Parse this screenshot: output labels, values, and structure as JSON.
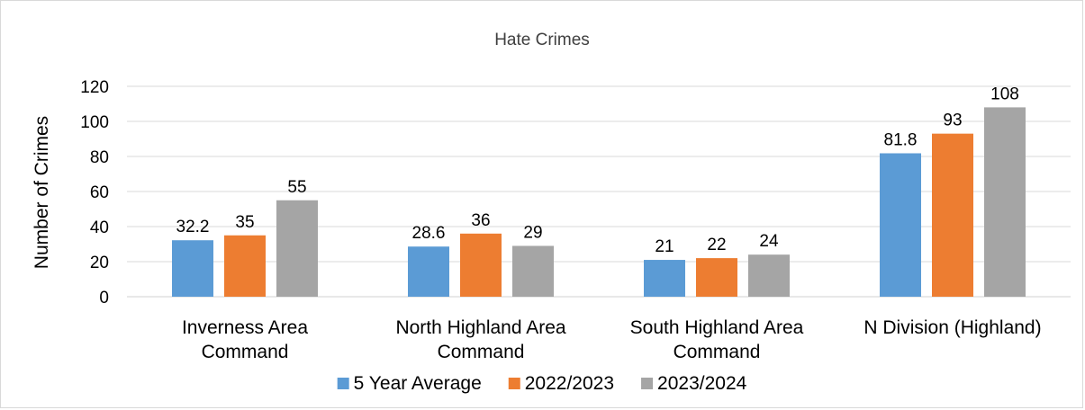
{
  "chart_data": {
    "type": "bar",
    "title": "Hate Crimes",
    "xlabel": "",
    "ylabel": "Number of Crimes",
    "ylim": [
      0,
      120
    ],
    "yticks": [
      0,
      20,
      40,
      60,
      80,
      100,
      120
    ],
    "grid": true,
    "legend": "bottom",
    "categories": [
      [
        "Inverness Area",
        "Command"
      ],
      [
        "North Highland Area",
        "Command"
      ],
      [
        "South Highland Area",
        "Command"
      ],
      [
        "N Division (Highland)"
      ]
    ],
    "series": [
      {
        "name": "5 Year Average",
        "color": "#5b9bd5",
        "values": [
          32.2,
          28.6,
          21,
          81.8
        ]
      },
      {
        "name": "2022/2023",
        "color": "#ed7d31",
        "values": [
          35,
          36,
          22,
          93
        ]
      },
      {
        "name": "2023/2024",
        "color": "#a5a5a5",
        "values": [
          55,
          29,
          24,
          108
        ]
      }
    ]
  }
}
